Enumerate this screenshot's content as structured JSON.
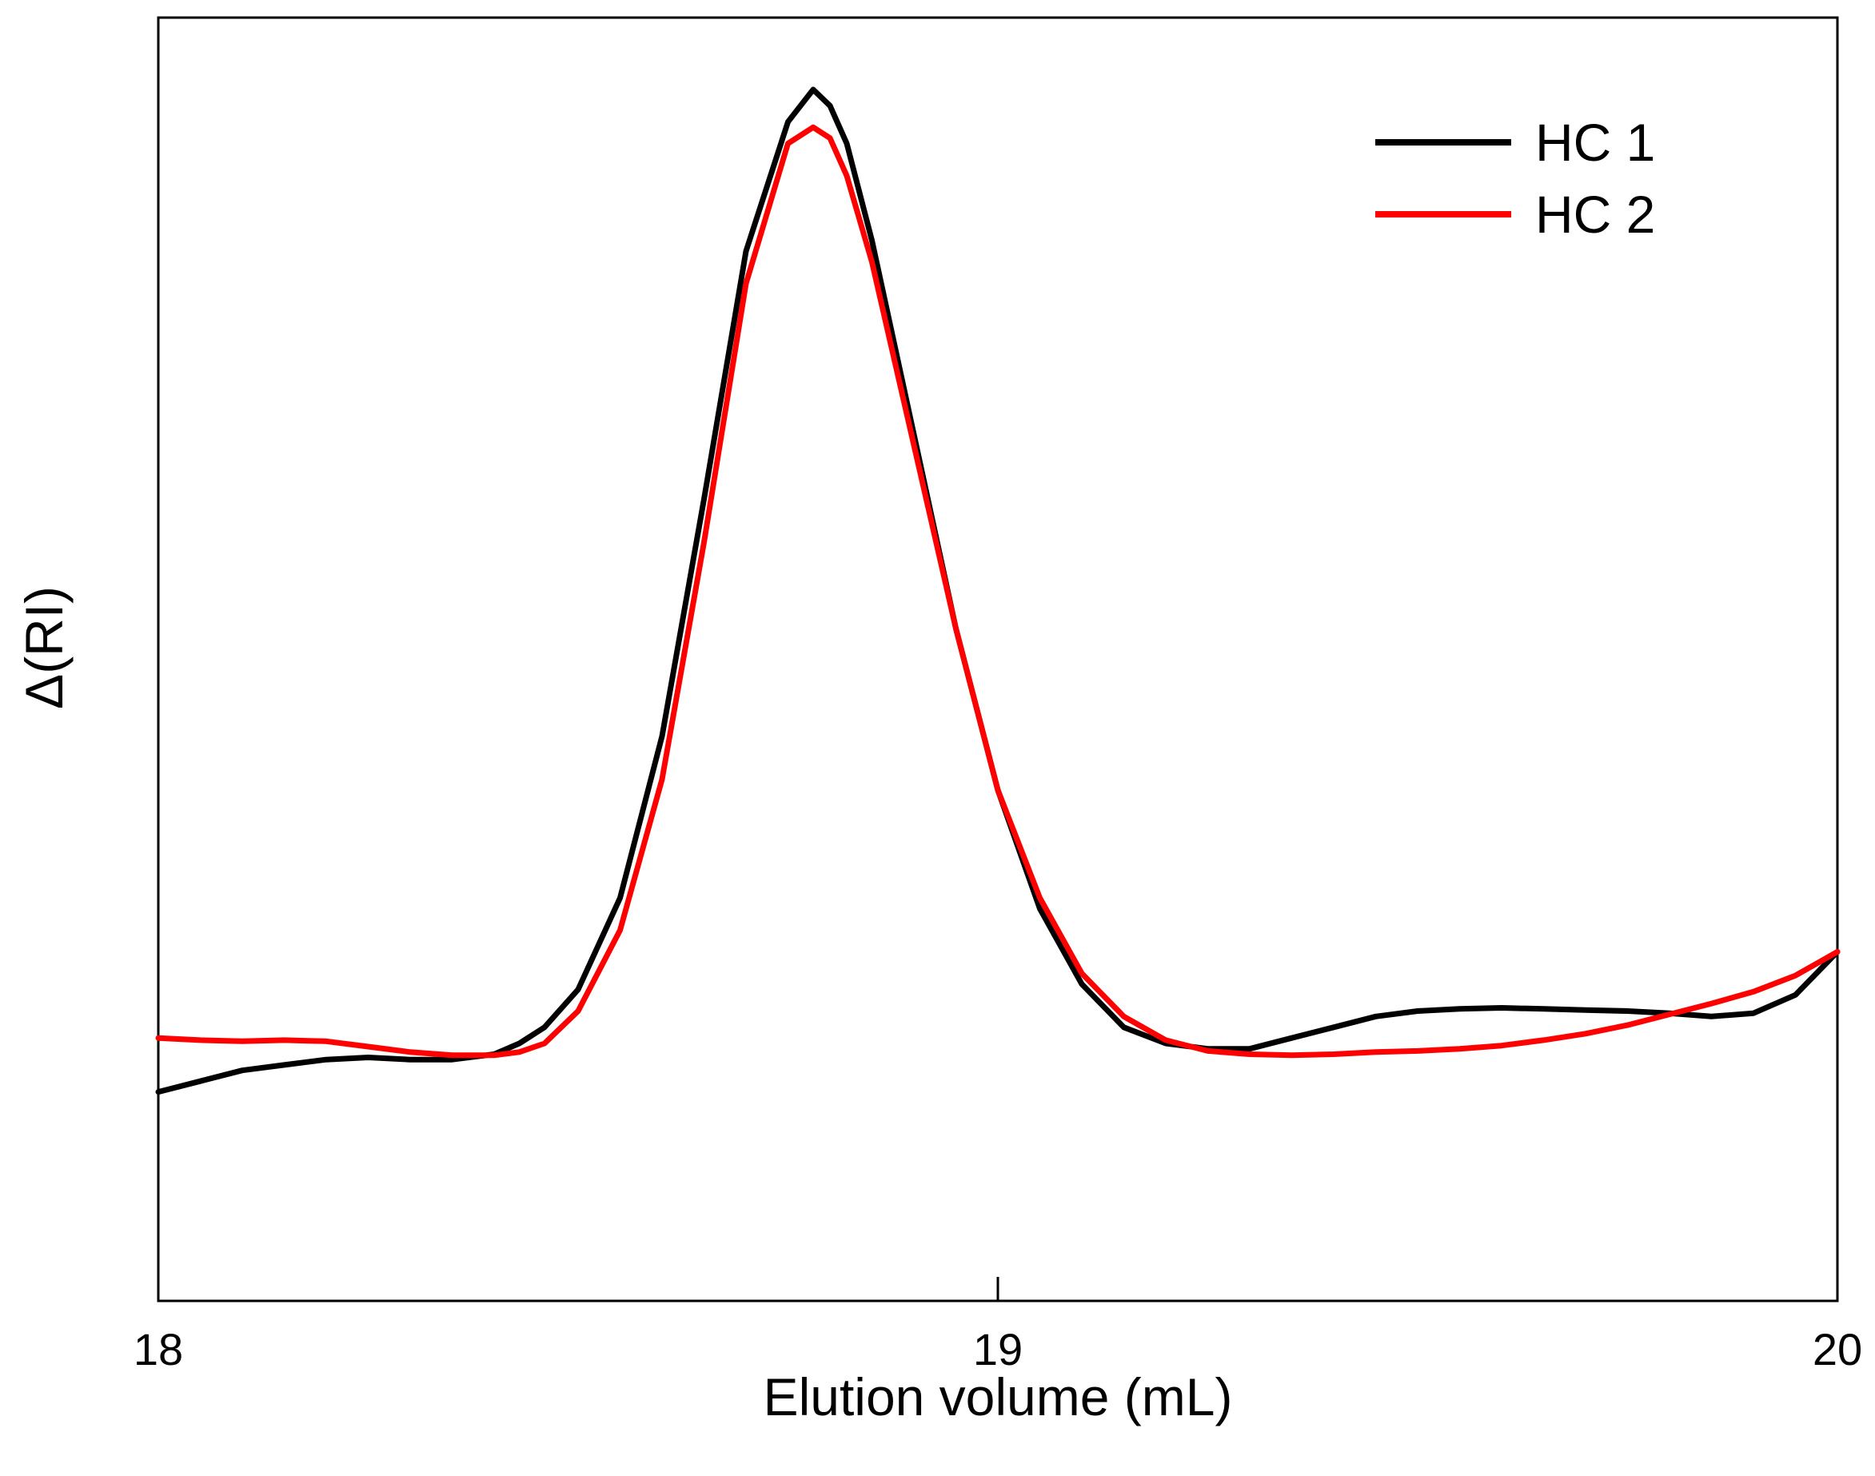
{
  "chart_data": {
    "type": "line",
    "title": "",
    "xlabel": "Elution volume (mL)",
    "ylabel": "Δ(RI)",
    "xlim": [
      18,
      20
    ],
    "ylim": [
      0,
      1
    ],
    "xticks": [
      18,
      19,
      20
    ],
    "xtick_labels": [
      "18",
      "19",
      "20"
    ],
    "yticks": [],
    "grid": false,
    "legend_position": "top-right",
    "series": [
      {
        "name": "HC 1",
        "color": "#000000",
        "x": [
          18.0,
          18.05,
          18.1,
          18.15,
          18.2,
          18.25,
          18.3,
          18.35,
          18.4,
          18.43,
          18.46,
          18.5,
          18.55,
          18.6,
          18.65,
          18.7,
          18.75,
          18.78,
          18.8,
          18.82,
          18.85,
          18.9,
          18.95,
          19.0,
          19.05,
          19.1,
          19.15,
          19.2,
          19.25,
          19.3,
          19.35,
          19.4,
          19.45,
          19.5,
          19.55,
          19.6,
          19.65,
          19.7,
          19.75,
          19.8,
          19.85,
          19.9,
          19.95,
          20.0
        ],
        "y": [
          0.07,
          0.08,
          0.09,
          0.095,
          0.1,
          0.102,
          0.1,
          0.1,
          0.105,
          0.115,
          0.13,
          0.165,
          0.25,
          0.4,
          0.62,
          0.85,
          0.97,
          1.0,
          0.985,
          0.95,
          0.86,
          0.68,
          0.5,
          0.35,
          0.24,
          0.17,
          0.13,
          0.115,
          0.11,
          0.11,
          0.12,
          0.13,
          0.14,
          0.145,
          0.147,
          0.148,
          0.147,
          0.146,
          0.145,
          0.143,
          0.14,
          0.143,
          0.16,
          0.2
        ]
      },
      {
        "name": "HC 2",
        "color": "#ff0000",
        "x": [
          18.0,
          18.05,
          18.1,
          18.15,
          18.2,
          18.25,
          18.3,
          18.35,
          18.4,
          18.43,
          18.46,
          18.5,
          18.55,
          18.6,
          18.65,
          18.7,
          18.75,
          18.78,
          18.8,
          18.82,
          18.85,
          18.9,
          18.95,
          19.0,
          19.05,
          19.1,
          19.15,
          19.2,
          19.25,
          19.3,
          19.35,
          19.4,
          19.45,
          19.5,
          19.55,
          19.6,
          19.65,
          19.7,
          19.75,
          19.8,
          19.85,
          19.9,
          19.95,
          20.0
        ],
        "y": [
          0.12,
          0.118,
          0.117,
          0.118,
          0.117,
          0.112,
          0.107,
          0.104,
          0.104,
          0.107,
          0.115,
          0.145,
          0.22,
          0.36,
          0.58,
          0.82,
          0.95,
          0.965,
          0.955,
          0.92,
          0.84,
          0.67,
          0.5,
          0.35,
          0.25,
          0.18,
          0.14,
          0.118,
          0.108,
          0.105,
          0.104,
          0.105,
          0.107,
          0.108,
          0.11,
          0.113,
          0.118,
          0.124,
          0.132,
          0.142,
          0.152,
          0.163,
          0.178,
          0.2
        ]
      }
    ]
  }
}
